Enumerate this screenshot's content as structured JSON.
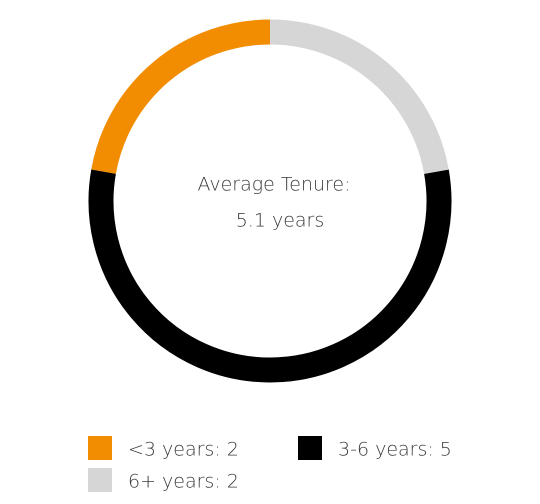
{
  "chart_data": {
    "type": "donut",
    "center_text": [
      "Average Tenure:",
      "5.1 years"
    ],
    "categories": [
      "<3 years: 2",
      "3-6 years: 5",
      "6+ years: 2"
    ],
    "values": [
      2,
      5,
      2
    ],
    "colors": [
      "#f28c00",
      "#000000",
      "#d6d6d6"
    ]
  }
}
